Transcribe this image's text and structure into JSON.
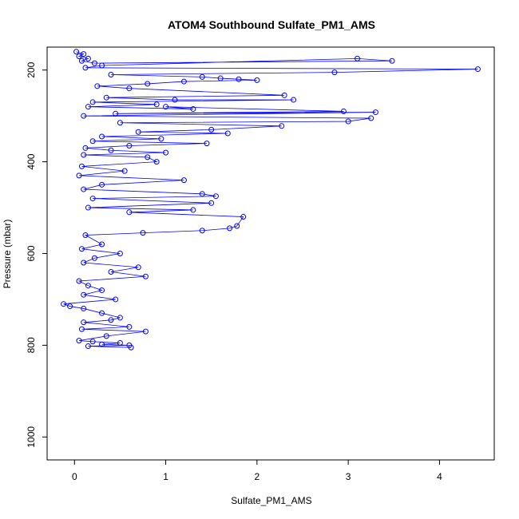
{
  "chart_data": {
    "type": "scatter",
    "title": "ATOM4 Southbound Sulfate_PM1_AMS",
    "xlabel": "Sulfate_PM1_AMS",
    "ylabel": "Pressure (mbar)",
    "xlim": [
      -0.3,
      4.6
    ],
    "ylim": [
      1050,
      150
    ],
    "y_reversed": true,
    "x_ticks": [
      0,
      1,
      2,
      3,
      4
    ],
    "y_ticks": [
      200,
      400,
      600,
      800,
      1000
    ],
    "grid": false,
    "legend": "none",
    "marker": "open-circle",
    "connect_points": true,
    "color": "#0000ff",
    "series": [
      {
        "x": [
          0.02,
          0.1,
          0.05,
          0.15,
          0.08,
          0.22,
          3.48,
          3.1,
          0.3,
          0.12,
          4.42,
          2.85,
          0.4,
          1.4,
          1.6,
          1.8,
          2.0,
          1.2,
          0.8,
          0.25,
          0.6,
          2.3,
          0.35,
          1.1,
          2.4,
          0.2,
          0.9,
          0.15,
          1.3,
          1.0,
          2.95,
          0.45,
          3.3,
          0.1,
          3.25,
          3.0,
          0.5,
          2.27,
          1.5,
          0.7,
          1.68,
          0.3,
          0.95,
          0.2,
          1.45,
          0.6,
          0.12,
          0.4,
          1.0,
          0.1,
          0.8,
          0.9,
          0.08,
          0.55,
          0.05,
          1.2,
          0.3,
          0.1,
          1.4,
          1.55,
          0.2,
          1.5,
          0.15,
          1.3,
          0.6,
          1.85,
          1.78,
          1.7,
          1.4,
          0.75,
          0.12,
          0.3,
          0.08,
          0.5,
          0.22,
          0.1,
          0.7,
          0.4,
          0.78,
          0.05,
          0.15,
          0.3,
          0.1,
          0.45,
          -0.12,
          -0.05,
          0.1,
          0.3,
          0.5,
          0.4,
          0.1,
          0.6,
          0.08,
          0.78,
          0.35,
          0.05,
          0.2,
          0.5,
          0.3,
          0.6,
          0.15,
          0.62
        ],
        "y": [
          160,
          165,
          170,
          175,
          180,
          185,
          180,
          175,
          190,
          195,
          198,
          205,
          210,
          215,
          218,
          220,
          222,
          225,
          230,
          235,
          240,
          255,
          260,
          265,
          265,
          270,
          275,
          280,
          285,
          280,
          290,
          295,
          292,
          300,
          305,
          312,
          315,
          322,
          330,
          335,
          338,
          345,
          350,
          355,
          360,
          365,
          370,
          375,
          380,
          385,
          390,
          400,
          410,
          420,
          430,
          440,
          450,
          460,
          470,
          475,
          480,
          490,
          500,
          505,
          510,
          520,
          540,
          545,
          550,
          555,
          560,
          580,
          590,
          600,
          610,
          620,
          630,
          640,
          650,
          660,
          670,
          680,
          690,
          700,
          710,
          715,
          720,
          730,
          740,
          745,
          750,
          760,
          765,
          770,
          780,
          790,
          792,
          795,
          798,
          800,
          802,
          805
        ]
      }
    ]
  }
}
